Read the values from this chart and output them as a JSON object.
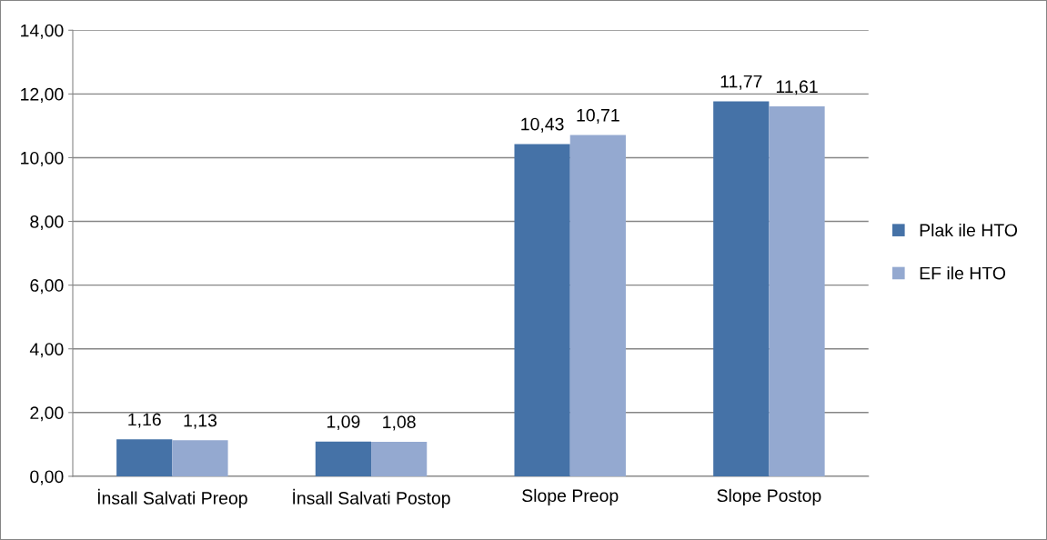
{
  "chart_data": {
    "type": "bar",
    "categories": [
      "İnsall Salvati Preop",
      "İnsall Salvati Postop",
      "Slope Preop",
      "Slope Postop"
    ],
    "series": [
      {
        "name": "Plak ile HTO",
        "color": "#4572a7",
        "values": [
          1.16,
          1.09,
          10.43,
          11.77
        ],
        "value_labels": [
          "1,16",
          "1,09",
          "10,43",
          "11,77"
        ]
      },
      {
        "name": "EF ile HTO",
        "color": "#94a9d0",
        "values": [
          1.13,
          1.08,
          10.71,
          11.61
        ],
        "value_labels": [
          "1,13",
          "1,08",
          "10,71",
          "11,61"
        ]
      }
    ],
    "ylim": [
      0,
      14
    ],
    "yticks": [
      {
        "value": 0,
        "label": "0,00"
      },
      {
        "value": 2,
        "label": "2,00"
      },
      {
        "value": 4,
        "label": "4,00"
      },
      {
        "value": 6,
        "label": "6,00"
      },
      {
        "value": 8,
        "label": "8,00"
      },
      {
        "value": 10,
        "label": "10,00"
      },
      {
        "value": 12,
        "label": "12,00"
      },
      {
        "value": 14,
        "label": "14,00"
      }
    ],
    "grid": "y",
    "legend": "right"
  }
}
